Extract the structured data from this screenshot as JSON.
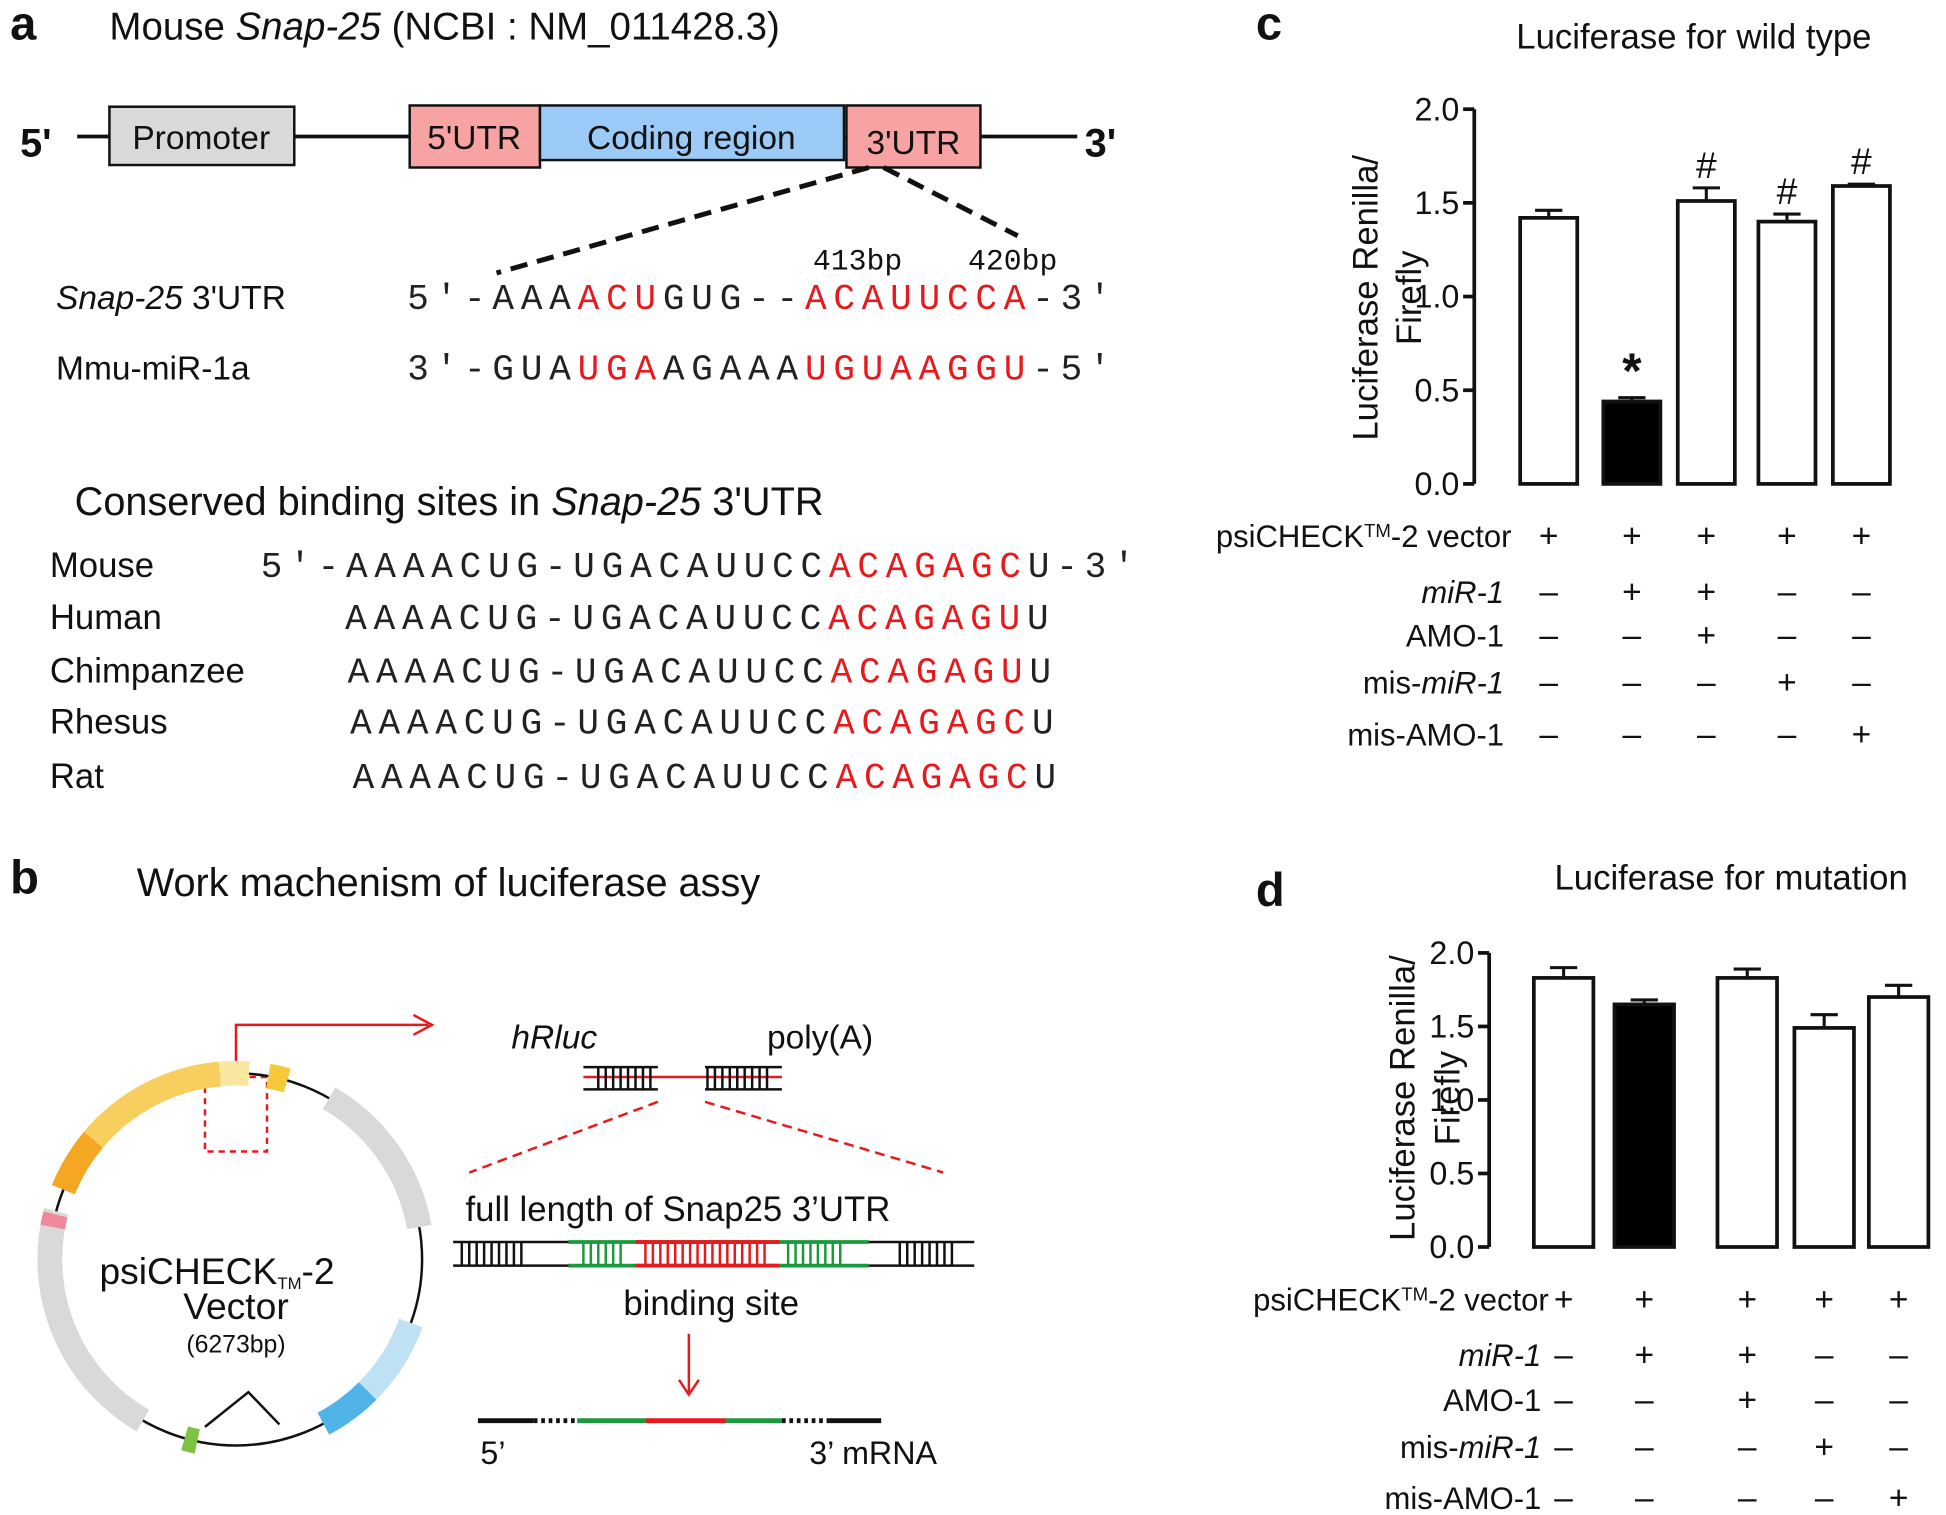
{
  "panel_a": {
    "letter": "a",
    "title": [
      {
        "text": "Mouse "
      },
      {
        "text": "Snap-25",
        "style": "italic"
      },
      {
        "text": " (NCBI : NM_011428.3)"
      }
    ],
    "gene": {
      "five": "5'",
      "promoter": "Promoter",
      "utr5": "5'UTR",
      "coding": "Coding region",
      "utr3": "3'UTR",
      "three": "3'"
    },
    "positions": [
      "413bp",
      "420bp"
    ],
    "alignment": [
      {
        "name": [
          {
            "text": "Snap-25",
            "style": "italic"
          },
          {
            "text": " 3'UTR"
          }
        ],
        "sequence": [
          "5'-AAA",
          "ACU",
          "GUG--",
          "ACAUUCCA",
          "-3'"
        ]
      },
      {
        "name": [
          {
            "text": "Mmu-miR-1a"
          }
        ],
        "sequence": [
          "3'-GUA",
          "UGA",
          "AGAAA",
          "UGUAAGGU",
          "-5'"
        ]
      }
    ],
    "conserved_title": [
      {
        "text": "Conserved binding sites in "
      },
      {
        "text": "Snap-25",
        "style": "italic"
      },
      {
        "text": " 3'UTR"
      }
    ],
    "species": [
      {
        "name": "Mouse",
        "sequence": [
          "5'-AAAACUG-UGACAUUCC",
          "ACAGAGC",
          "U-3'"
        ]
      },
      {
        "name": "Human",
        "sequence": [
          "AAAACUG-UGACAUUCC",
          "ACAGAGU",
          "U"
        ]
      },
      {
        "name": "Chimpanzee",
        "sequence": [
          "AAAACUG-UGACAUUCC",
          "ACAGAGU",
          "U"
        ]
      },
      {
        "name": "Rhesus",
        "sequence": [
          "AAAACUG-UGACAUUCC",
          "ACAGAGC",
          "U"
        ]
      },
      {
        "name": "Rat",
        "sequence": [
          "AAAACUG-UGACAUUCC",
          "ACAGAGC",
          "U"
        ]
      }
    ],
    "highlight_color": "#e8191c"
  },
  "panel_b": {
    "letter": "b",
    "title": "Work machenism of luciferase assy",
    "plasmid": [
      {
        "text": "psiCHECK"
      },
      {
        "text": "TM",
        "style": "sub"
      },
      {
        "text": "-2"
      }
    ],
    "vector": "Vector",
    "size": "(6273bp)",
    "gene": "hRluc",
    "polya": "poly(A)",
    "utr_label": "full length of Snap25 3’UTR",
    "binding_label": "binding site",
    "mrna_5": "5’",
    "mrna_3": "3’ mRNA"
  },
  "chart_data": [
    {
      "type": "bar",
      "letter": "c",
      "title": "Luciferase for wild type",
      "y_label": [
        "Luciferase Renilla/",
        "Firefly"
      ],
      "values": [
        1.42,
        0.44,
        1.51,
        1.4,
        1.59
      ],
      "errors": [
        0.04,
        0.02,
        0.07,
        0.04,
        0.01
      ],
      "colors": [
        "#ffffff",
        "#000000",
        "#ffffff",
        "#ffffff",
        "#ffffff"
      ],
      "annotations": [
        null,
        "*",
        "#",
        "#",
        "#"
      ],
      "ylim": [
        0,
        2
      ],
      "yticks": [
        {
          "value": 0,
          "label": "0.0"
        },
        {
          "value": 0.5,
          "label": "0.5"
        },
        {
          "value": 1,
          "label": "1.0"
        },
        {
          "value": 1.5,
          "label": "1.5"
        },
        {
          "value": 2,
          "label": "2.0"
        }
      ],
      "conditions": [
        {
          "label": [
            {
              "text": "psiCHECK"
            },
            {
              "text": "TM",
              "style": "sup"
            },
            {
              "text": "-2 vector"
            }
          ],
          "signs": [
            "+",
            "+",
            "+",
            "+",
            "+"
          ]
        },
        {
          "label": [
            {
              "text": "miR-1",
              "style": "italic"
            }
          ],
          "signs": [
            "–",
            "+",
            "+",
            "–",
            "–"
          ]
        },
        {
          "label": [
            {
              "text": "AMO-1"
            }
          ],
          "signs": [
            "–",
            "–",
            "+",
            "–",
            "–"
          ]
        },
        {
          "label": [
            {
              "text": "mis-"
            },
            {
              "text": "miR-1",
              "style": "italic"
            }
          ],
          "signs": [
            "–",
            "–",
            "–",
            "+",
            "–"
          ]
        },
        {
          "label": [
            {
              "text": "mis-AMO-1"
            }
          ],
          "signs": [
            "–",
            "–",
            "–",
            "–",
            "+"
          ]
        }
      ]
    },
    {
      "type": "bar",
      "letter": "d",
      "title": "Luciferase for mutation",
      "y_label": [
        "Luciferase Renilla/",
        "Firefly"
      ],
      "values": [
        1.83,
        1.65,
        1.83,
        1.49,
        1.7
      ],
      "errors": [
        0.07,
        0.03,
        0.06,
        0.09,
        0.08
      ],
      "colors": [
        "#ffffff",
        "#000000",
        "#ffffff",
        "#ffffff",
        "#ffffff"
      ],
      "ylim": [
        0,
        2
      ],
      "yticks": [
        {
          "value": 0,
          "label": "0.0"
        },
        {
          "value": 0.5,
          "label": "0.5"
        },
        {
          "value": 1,
          "label": "1.0"
        },
        {
          "value": 1.5,
          "label": "1.5"
        },
        {
          "value": 2,
          "label": "2.0"
        }
      ],
      "conditions": [
        {
          "label": [
            {
              "text": "psiCHECK"
            },
            {
              "text": "TM",
              "style": "sup"
            },
            {
              "text": "-2 vector"
            }
          ],
          "signs": [
            "+",
            "+",
            "+",
            "+",
            "+"
          ]
        },
        {
          "label": [
            {
              "text": "miR-1",
              "style": "italic"
            }
          ],
          "signs": [
            "–",
            "+",
            "+",
            "–",
            "–"
          ]
        },
        {
          "label": [
            {
              "text": "AMO-1"
            }
          ],
          "signs": [
            "–",
            "–",
            "+",
            "–",
            "–"
          ]
        },
        {
          "label": [
            {
              "text": "mis-"
            },
            {
              "text": "miR-1",
              "style": "italic"
            }
          ],
          "signs": [
            "–",
            "–",
            "–",
            "+",
            "–"
          ]
        },
        {
          "label": [
            {
              "text": "mis-AMO-1"
            }
          ],
          "signs": [
            "–",
            "–",
            "–",
            "–",
            "+"
          ]
        }
      ]
    }
  ]
}
